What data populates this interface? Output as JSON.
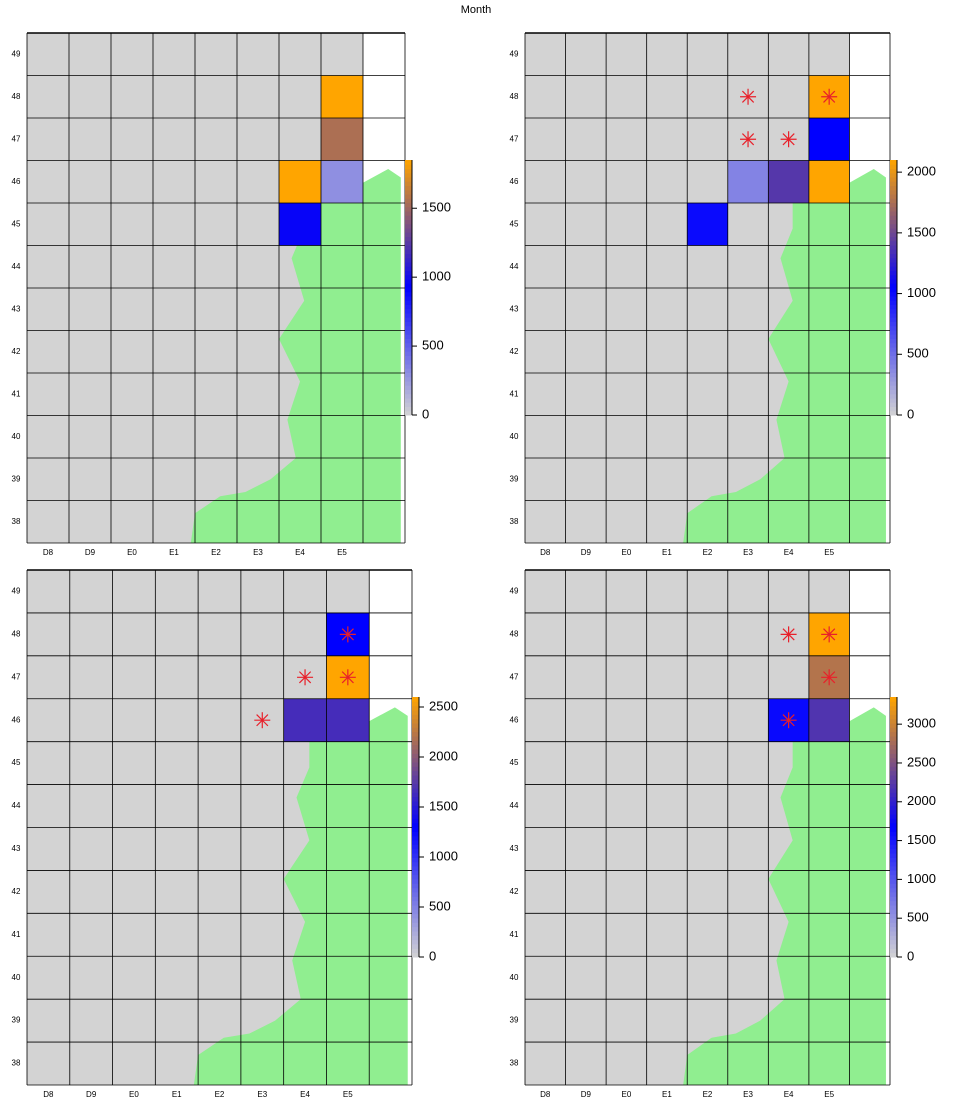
{
  "title": "Month",
  "columns": [
    "D8",
    "D9",
    "E0",
    "E1",
    "E2",
    "E3",
    "E4",
    "E5"
  ],
  "rows": [
    49,
    48,
    47,
    46,
    45,
    44,
    43,
    42,
    41,
    40,
    39,
    38
  ],
  "colorscale": [
    "#d3d3d3",
    "#0000ff",
    "#ffa500"
  ],
  "land_color": "#90ee90",
  "background": "#d3d3d3",
  "star_color": "#e8202a",
  "panels": [
    {
      "lim": [
        0,
        1850
      ],
      "ticks": [
        0,
        500,
        1000,
        1500
      ],
      "cells": [
        {
          "col": "E5",
          "row": 48,
          "value": 1850
        },
        {
          "col": "E5",
          "row": 47,
          "value": 1550
        },
        {
          "col": "E4",
          "row": 46,
          "value": 1850
        },
        {
          "col": "E5",
          "row": 46,
          "value": 300
        },
        {
          "col": "E4",
          "row": 45,
          "value": 950
        }
      ],
      "stars": []
    },
    {
      "lim": [
        0,
        2100
      ],
      "ticks": [
        0,
        500,
        1000,
        1500,
        2000
      ],
      "cells": [
        {
          "col": "E5",
          "row": 48,
          "value": 2100
        },
        {
          "col": "E5",
          "row": 47,
          "value": 1050
        },
        {
          "col": "E3",
          "row": 46,
          "value": 400
        },
        {
          "col": "E4",
          "row": 46,
          "value": 1400
        },
        {
          "col": "E5",
          "row": 46,
          "value": 2100
        },
        {
          "col": "E2",
          "row": 45,
          "value": 1000
        }
      ],
      "stars": [
        {
          "col": "E3",
          "row": 48
        },
        {
          "col": "E5",
          "row": 48
        },
        {
          "col": "E3",
          "row": 47
        },
        {
          "col": "E4",
          "row": 47
        }
      ]
    },
    {
      "lim": [
        0,
        2600
      ],
      "ticks": [
        0,
        500,
        1000,
        1500,
        2000,
        2500
      ],
      "cells": [
        {
          "col": "E5",
          "row": 48,
          "value": 1300
        },
        {
          "col": "E5",
          "row": 47,
          "value": 2600
        },
        {
          "col": "E4",
          "row": 46,
          "value": 1650
        },
        {
          "col": "E5",
          "row": 46,
          "value": 1650
        }
      ],
      "stars": [
        {
          "col": "E5",
          "row": 48
        },
        {
          "col": "E4",
          "row": 47
        },
        {
          "col": "E5",
          "row": 47
        },
        {
          "col": "E3",
          "row": 46
        }
      ]
    },
    {
      "lim": [
        0,
        3350
      ],
      "ticks": [
        0,
        500,
        1000,
        1500,
        2000,
        2500,
        3000
      ],
      "cells": [
        {
          "col": "E5",
          "row": 48,
          "value": 3350
        },
        {
          "col": "E5",
          "row": 47,
          "value": 2850
        },
        {
          "col": "E4",
          "row": 46,
          "value": 1600
        },
        {
          "col": "E5",
          "row": 46,
          "value": 2200
        }
      ],
      "stars": [
        {
          "col": "E4",
          "row": 48
        },
        {
          "col": "E5",
          "row": 48
        },
        {
          "col": "E5",
          "row": 47
        },
        {
          "col": "E4",
          "row": 46
        }
      ]
    }
  ]
}
